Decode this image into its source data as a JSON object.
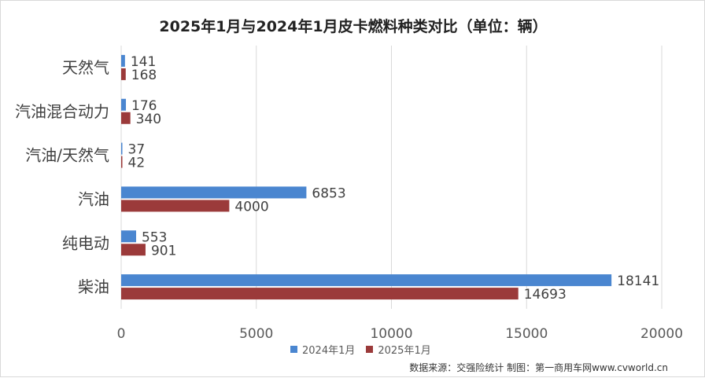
{
  "chart_data": {
    "type": "bar",
    "orientation": "horizontal",
    "title": "2025年1月与2024年1月皮卡燃料种类对比（单位：辆）",
    "categories": [
      "天然气",
      "汽油混合动力",
      "汽油/天然气",
      "汽油",
      "纯电动",
      "柴油"
    ],
    "series": [
      {
        "name": "2024年1月",
        "color": "#4a86d0",
        "values": [
          141,
          176,
          37,
          6853,
          553,
          18141
        ]
      },
      {
        "name": "2025年1月",
        "color": "#9b3a3a",
        "values": [
          168,
          340,
          42,
          4000,
          901,
          14693
        ]
      }
    ],
    "xlim": [
      0,
      20000
    ],
    "xticks": [
      0,
      5000,
      10000,
      15000,
      20000
    ],
    "grid": true,
    "legend_position": "bottom"
  },
  "source": "数据来源：交强险统计 制图：第一商用车网www.cvworld.cn"
}
